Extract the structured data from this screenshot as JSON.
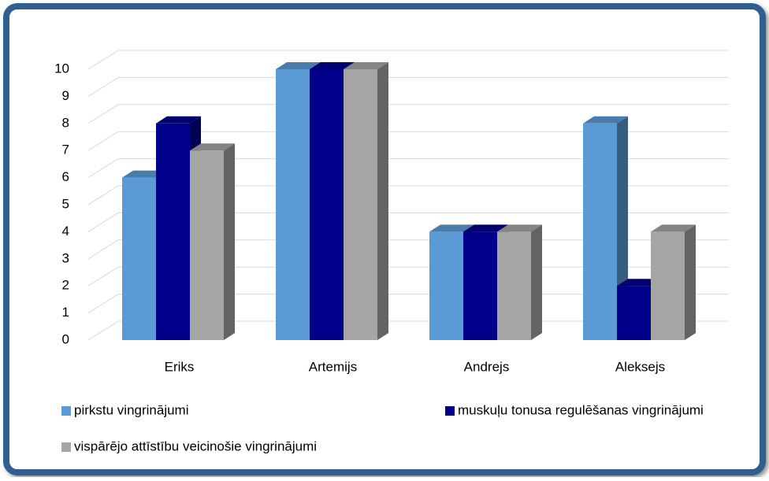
{
  "chart_data": {
    "type": "bar3d",
    "categories": [
      "Eriks",
      "Artemijs",
      "Andrejs",
      "Aleksejs"
    ],
    "series": [
      {
        "name": "pirkstu vingrinājumi",
        "color": "#5b9bd5",
        "values": [
          6,
          10,
          4,
          8
        ]
      },
      {
        "name": "muskuļu tonusa regulēšanas vingrinājumi",
        "color": "#00008b",
        "values": [
          8,
          10,
          4,
          2
        ]
      },
      {
        "name": "vispārējo attīstību veicinošie vingrinājumi",
        "color": "#a5a5a5",
        "values": [
          7,
          10,
          4,
          4
        ]
      }
    ],
    "ylim": [
      0,
      10
    ],
    "yticks": [
      0,
      1,
      2,
      3,
      4,
      5,
      6,
      7,
      8,
      9,
      10
    ],
    "grid": true,
    "legend": "bottom"
  }
}
